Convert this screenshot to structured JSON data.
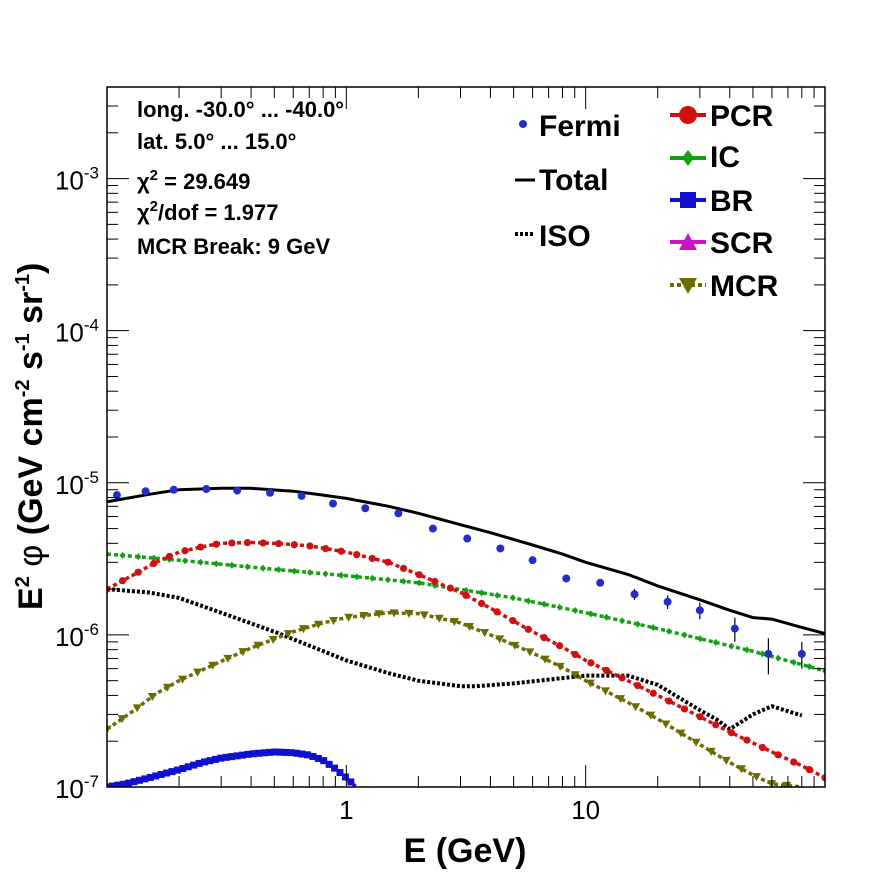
{
  "chart_data": {
    "type": "line",
    "xscale": "log",
    "yscale": "log",
    "xlim": [
      0.1,
      100
    ],
    "ylim": [
      1e-07,
      0.004
    ],
    "xlabel": "E (GeV)",
    "ylabel": {
      "prefix": "E",
      "prefix_sup": "2",
      "symbol": "φ",
      "open": " (GeV cm",
      "sup1": "-2",
      "mid": " s",
      "sup2": "-1",
      "end": " sr",
      "sup3": "-1",
      "close": ")"
    },
    "xticks": [
      {
        "value": 1,
        "label": "1"
      },
      {
        "value": 10,
        "label": "10"
      }
    ],
    "yticks": [
      {
        "value": 1e-07,
        "base": "10",
        "exp": "-7"
      },
      {
        "value": 1e-06,
        "base": "10",
        "exp": "-6"
      },
      {
        "value": 1e-05,
        "base": "10",
        "exp": "-5"
      },
      {
        "value": 0.0001,
        "base": "10",
        "exp": "-4"
      },
      {
        "value": 0.001,
        "base": "10",
        "exp": "-3"
      }
    ],
    "info": {
      "long": "long. -30.0° ... -40.0°",
      "lat": "lat. 5.0° ... 15.0°",
      "chi2_label": "χ",
      "chi2_sup": "2",
      "chi2_value": " = 29.649",
      "chi2dof_sup": "2",
      "chi2dof_value": "/dof = 1.977",
      "break": "MCR Break:  9 GeV"
    },
    "legend": [
      {
        "name": "Fermi",
        "color": "#1f2fc8",
        "marker": "dot"
      },
      {
        "name": "Total",
        "color": "#000000",
        "marker": "line"
      },
      {
        "name": "ISO",
        "color": "#000000",
        "marker": "dotted"
      },
      {
        "name": "PCR",
        "color": "#d01010",
        "marker": "circle"
      },
      {
        "name": "IC",
        "color": "#13a013",
        "marker": "diamond"
      },
      {
        "name": "BR",
        "color": "#1010d0",
        "marker": "square"
      },
      {
        "name": "SCR",
        "color": "#cc10cc",
        "marker": "triangle-up"
      },
      {
        "name": "MCR",
        "color": "#6b6b00",
        "marker": "triangle-down"
      }
    ],
    "fermi": {
      "x": [
        0.11,
        0.145,
        0.19,
        0.26,
        0.35,
        0.48,
        0.65,
        0.88,
        1.2,
        1.65,
        2.3,
        3.2,
        4.4,
        6.0,
        8.3,
        11.5,
        16,
        22,
        30,
        42,
        58,
        80
      ],
      "y": [
        8.3e-06,
        8.8e-06,
        9e-06,
        9.1e-06,
        8.9e-06,
        8.6e-06,
        8.2e-06,
        7.3e-06,
        6.8e-06,
        6.3e-06,
        5e-06,
        4.3e-06,
        3.7e-06,
        3.1e-06,
        2.35e-06,
        2.2e-06,
        1.85e-06,
        1.65e-06,
        1.45e-06,
        1.1e-06,
        7.5e-07,
        7.5e-07
      ],
      "err": [
        0,
        0,
        0,
        0,
        0,
        0,
        0,
        0,
        0,
        0,
        0,
        1e-07,
        1e-07,
        1e-07,
        1e-07,
        1.2e-07,
        1.5e-07,
        1.7e-07,
        1.8e-07,
        2e-07,
        2e-07,
        1.5e-07
      ]
    },
    "series": [
      {
        "name": "Total",
        "color": "#000000",
        "style": "solid",
        "x": [
          0.1,
          0.15,
          0.2,
          0.3,
          0.4,
          0.6,
          0.8,
          1,
          1.5,
          2,
          3,
          4,
          6,
          8,
          10,
          15,
          20,
          30,
          40,
          50,
          60,
          80,
          100
        ],
        "y": [
          7.5e-06,
          8.4e-06,
          9e-06,
          9.2e-06,
          9.2e-06,
          8.8e-06,
          8.3e-06,
          7.9e-06,
          7e-06,
          6.3e-06,
          5.3e-06,
          4.7e-06,
          3.9e-06,
          3.4e-06,
          3e-06,
          2.5e-06,
          2.1e-06,
          1.7e-06,
          1.45e-06,
          1.3e-06,
          1.27e-06,
          1.12e-06,
          1.02e-06
        ]
      },
      {
        "name": "PCR",
        "color": "#d01010",
        "style": "dashed",
        "marker": "circle",
        "x": [
          0.1,
          0.13,
          0.16,
          0.2,
          0.25,
          0.3,
          0.4,
          0.5,
          0.7,
          1,
          1.5,
          2,
          3,
          4,
          6,
          8,
          10,
          15,
          20,
          30,
          40,
          60,
          80,
          100
        ],
        "y": [
          2e-06,
          2.5e-06,
          3e-06,
          3.5e-06,
          3.8e-06,
          4e-06,
          4.05e-06,
          4e-06,
          3.85e-06,
          3.5e-06,
          3e-06,
          2.5e-06,
          1.9e-06,
          1.5e-06,
          1.05e-06,
          8.3e-07,
          6.8e-07,
          5e-07,
          4e-07,
          2.9e-07,
          2.3e-07,
          1.7e-07,
          1.38e-07,
          1.15e-07
        ]
      },
      {
        "name": "IC",
        "color": "#13a013",
        "style": "dashed",
        "marker": "diamond",
        "x": [
          0.1,
          0.2,
          0.5,
          1,
          2,
          5,
          10,
          20,
          50,
          100
        ],
        "y": [
          3.4e-06,
          3.1e-06,
          2.7e-06,
          2.45e-06,
          2.2e-06,
          1.75e-06,
          1.4e-06,
          1.1e-06,
          7.8e-07,
          5.8e-07
        ]
      },
      {
        "name": "BR",
        "color": "#1010d0",
        "style": "dashed",
        "marker": "square",
        "x": [
          0.1,
          0.12,
          0.15,
          0.2,
          0.25,
          0.3,
          0.4,
          0.5,
          0.6,
          0.7,
          0.8,
          0.9,
          1.0,
          1.1
        ],
        "y": [
          1e-07,
          1.05e-07,
          1.15e-07,
          1.3e-07,
          1.45e-07,
          1.55e-07,
          1.65e-07,
          1.7e-07,
          1.68e-07,
          1.62e-07,
          1.5e-07,
          1.32e-07,
          1.15e-07,
          1e-07
        ]
      },
      {
        "name": "MCR",
        "color": "#6b6b00",
        "style": "dashed",
        "marker": "triangle-down",
        "x": [
          0.1,
          0.13,
          0.16,
          0.2,
          0.3,
          0.4,
          0.6,
          0.8,
          1,
          1.5,
          2,
          3,
          4,
          6,
          8,
          10,
          15,
          20,
          30,
          40,
          50,
          60,
          80
        ],
        "y": [
          2.4e-07,
          3.2e-07,
          4.1e-07,
          5e-07,
          6.7e-07,
          8.2e-07,
          1.05e-06,
          1.2e-06,
          1.3e-06,
          1.4e-06,
          1.38e-06,
          1.2e-06,
          1e-06,
          7.6e-07,
          6.1e-07,
          5e-07,
          3.6e-07,
          2.8e-07,
          1.9e-07,
          1.45e-07,
          1.2e-07,
          1.05e-07,
          1e-07
        ]
      },
      {
        "name": "ISO",
        "color": "#000000",
        "style": "dotted",
        "x": [
          0.1,
          0.15,
          0.2,
          0.3,
          0.5,
          0.7,
          1,
          1.5,
          2,
          3,
          3.5,
          5,
          8,
          10,
          15,
          20,
          25,
          30,
          35,
          40,
          50,
          60,
          70,
          80
        ],
        "y": [
          2e-06,
          1.9e-06,
          1.75e-06,
          1.4e-06,
          1.05e-06,
          8.5e-07,
          6.8e-07,
          5.6e-07,
          5e-07,
          4.6e-07,
          4.6e-07,
          4.8e-07,
          5.2e-07,
          5.4e-07,
          5.4e-07,
          4.7e-07,
          3.8e-07,
          3.2e-07,
          2.8e-07,
          2.4e-07,
          3e-07,
          3.4e-07,
          3.15e-07,
          2.95e-07
        ]
      }
    ]
  }
}
